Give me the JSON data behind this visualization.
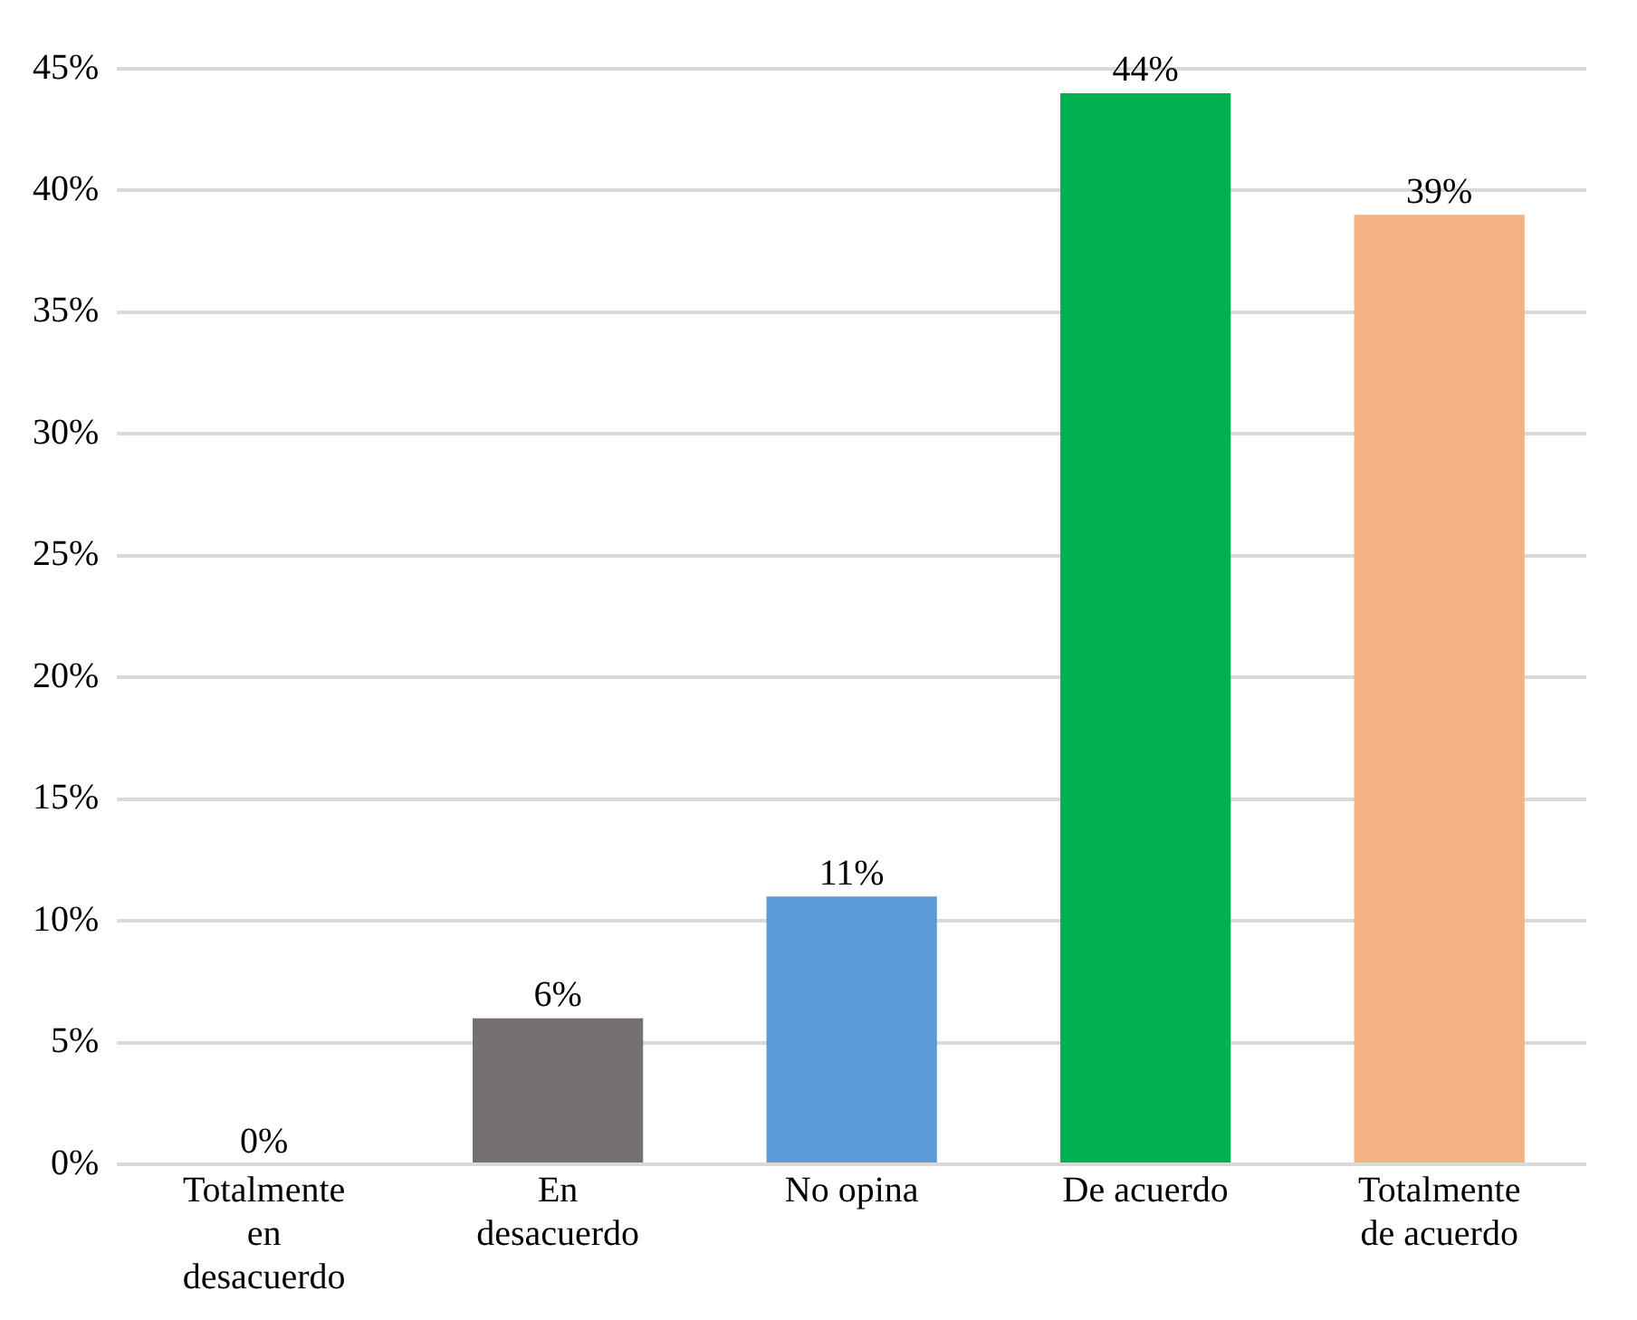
{
  "chart_data": {
    "type": "bar",
    "categories": [
      "Totalmente en desacuerdo",
      "En desacuerdo",
      "No opina",
      "De acuerdo",
      "Totalmente de acuerdo"
    ],
    "values": [
      0,
      6,
      11,
      44,
      39
    ],
    "colors": [
      "#c4a54a",
      "#767171",
      "#5b9bd5",
      "#00b050",
      "#f4b183"
    ],
    "ylim": [
      0,
      45
    ],
    "yticks": [
      {
        "value": 0,
        "label": "0%"
      },
      {
        "value": 5,
        "label": "5%"
      },
      {
        "value": 10,
        "label": "10%"
      },
      {
        "value": 15,
        "label": "15%"
      },
      {
        "value": 20,
        "label": "20%"
      },
      {
        "value": 25,
        "label": "25%"
      },
      {
        "value": 30,
        "label": "30%"
      },
      {
        "value": 35,
        "label": "35%"
      },
      {
        "value": 40,
        "label": "40%"
      },
      {
        "value": 45,
        "label": "45%"
      }
    ],
    "grid": "y",
    "value_labels": [
      "0%",
      "6%",
      "11%",
      "44%",
      "39%"
    ]
  }
}
